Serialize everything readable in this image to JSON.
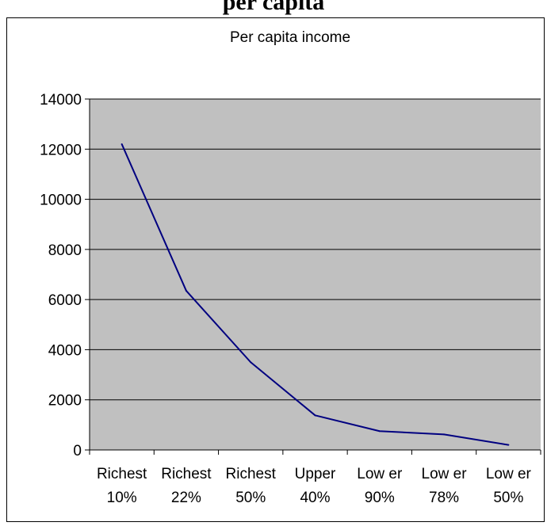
{
  "page": {
    "heading_fragment": "per capita"
  },
  "chart_data": {
    "type": "line",
    "title": "Per capita income",
    "xlabel": "",
    "ylabel": "",
    "categories": [
      [
        "Richest",
        "10%"
      ],
      [
        "Richest",
        "22%"
      ],
      [
        "Richest",
        "50%"
      ],
      [
        "Upper",
        "40%"
      ],
      [
        "Low er",
        "90%"
      ],
      [
        "Low er",
        "78%"
      ],
      [
        "Low er",
        "50%"
      ]
    ],
    "values": [
      12200,
      6350,
      3500,
      1380,
      750,
      620,
      200
    ],
    "ylim": [
      0,
      14000
    ],
    "yticks": [
      0,
      2000,
      4000,
      6000,
      8000,
      10000,
      12000,
      14000
    ],
    "grid": true,
    "legend": "none",
    "colors": {
      "plot_bg": "#c0c0c0",
      "line": "#000080",
      "grid": "#000000"
    }
  }
}
